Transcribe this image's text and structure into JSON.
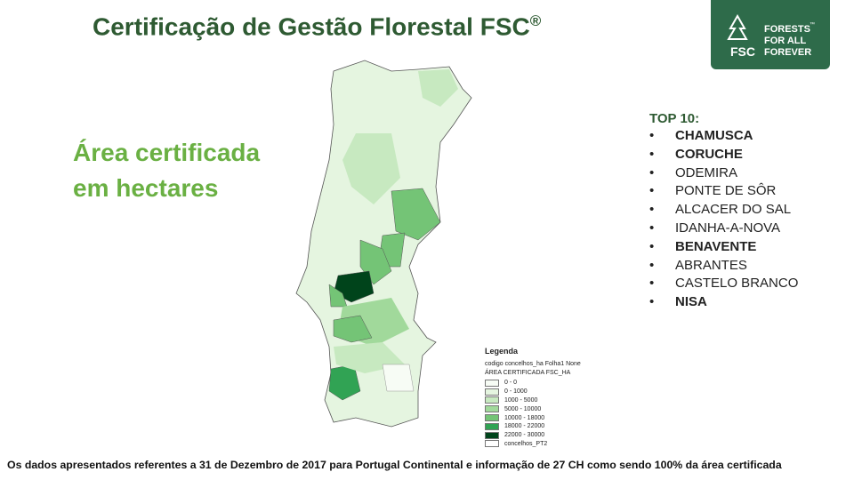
{
  "slide": {
    "title": "Certificação de Gestão Florestal FSC",
    "title_mark": "®",
    "subtitle_lines": [
      "Área certificada",
      "em hectares"
    ],
    "logo": {
      "mark": "FSC",
      "lines": [
        "FORESTS",
        "FOR ALL",
        "FOREVER"
      ],
      "tm": "™"
    },
    "top10": {
      "heading": "TOP 10:",
      "items": [
        {
          "name": "CHAMUSCA",
          "bold": true
        },
        {
          "name": "CORUCHE",
          "bold": true
        },
        {
          "name": "ODEMIRA",
          "bold": false
        },
        {
          "name": "PONTE  DE SÔR",
          "bold": false
        },
        {
          "name": "ALCACER  DO SAL",
          "bold": false
        },
        {
          "name": "IDANHA-A-NOVA",
          "bold": false
        },
        {
          "name": "BENAVENTE",
          "bold": true
        },
        {
          "name": "ABRANTES",
          "bold": false
        },
        {
          "name": "CASTELO  BRANCO",
          "bold": false
        },
        {
          "name": "NISA",
          "bold": true
        }
      ]
    },
    "legend": {
      "title": "Legenda",
      "layer": "codigo concelhos_ha Folha1 None",
      "field": "ÁREA CERTIFICADA FSC_HA",
      "items": [
        {
          "label": "0 - 0",
          "color": "#f7fcf5"
        },
        {
          "label": "0 - 1000",
          "color": "#e5f5e0"
        },
        {
          "label": "1000 - 5000",
          "color": "#c7e9c0"
        },
        {
          "label": "5000 - 10000",
          "color": "#a1d99b"
        },
        {
          "label": "10000 - 18000",
          "color": "#74c476"
        },
        {
          "label": "18000 - 22000",
          "color": "#31a354"
        },
        {
          "label": "22000 - 30000",
          "color": "#00441b"
        },
        {
          "label": "concelhos_PT2",
          "color": "#ffffff"
        }
      ]
    },
    "footer": "Os dados apresentados referentes a 31 de Dezembro de 2017 para Portugal Continental e informação de 27 CH como sendo 100% da área certificada"
  }
}
